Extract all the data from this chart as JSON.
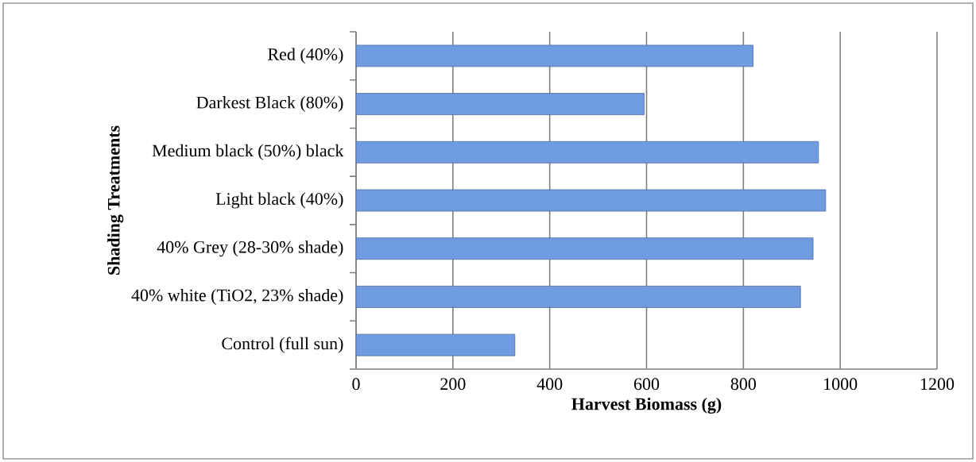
{
  "chart_data": {
    "type": "bar",
    "orientation": "horizontal",
    "xlabel": "Harvest Biomass (g)",
    "ylabel": "Shading Treatments",
    "categories": [
      "Red (40%)",
      "Darkest Black (80%)",
      "Medium black (50%) black",
      "Light black (40%)",
      "40% Grey (28-30% shade)",
      "40% white (TiO2, 23% shade)",
      "Control (full sun)"
    ],
    "values": [
      820,
      595,
      955,
      970,
      944,
      918,
      328
    ],
    "color": "#6f9be0",
    "xlim": [
      0,
      1200
    ],
    "xticks": [
      0,
      200,
      400,
      600,
      800,
      1000,
      1200
    ],
    "grid": "x"
  }
}
